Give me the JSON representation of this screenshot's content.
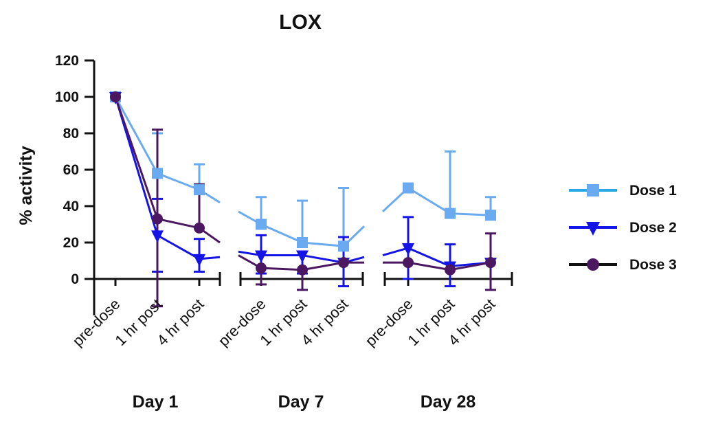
{
  "chart_data": {
    "type": "line",
    "title": "LOX",
    "ylabel": "% activity",
    "xlabel": "",
    "ylim": [
      -20,
      120
    ],
    "yticks": [
      "120",
      "100",
      "80",
      "60",
      "40",
      "20",
      "0"
    ],
    "groups": [
      {
        "label": "Day 1",
        "categories": [
          "pre-dose",
          "1 hr post",
          "4 hr post"
        ]
      },
      {
        "label": "Day 7",
        "categories": [
          "pre-dose",
          "1 hr post",
          "4 hr post"
        ]
      },
      {
        "label": "Day 28",
        "categories": [
          "pre-dose",
          "1 hr post",
          "4 hr post"
        ]
      }
    ],
    "series": [
      {
        "name": "Dose 1",
        "color": "#6aaaf0",
        "marker": "square",
        "values": [
          100,
          58,
          49,
          30,
          20,
          18,
          50,
          36,
          35
        ],
        "err_low": [
          null,
          null,
          null,
          null,
          null,
          null,
          null,
          null,
          null
        ],
        "err_high": [
          null,
          80,
          63,
          45,
          43,
          50,
          null,
          70,
          45
        ],
        "segment_ends": [
          42,
          37,
          29,
          37
        ]
      },
      {
        "name": "Dose 2",
        "color": "#1414e6",
        "marker": "triangle-down",
        "values": [
          100,
          24,
          11,
          13,
          13,
          9,
          17,
          7,
          9
        ],
        "err_low": [
          null,
          4,
          4,
          3,
          3,
          -4,
          0,
          -4,
          null
        ],
        "err_high": [
          null,
          44,
          22,
          24,
          null,
          23,
          34,
          19,
          null
        ],
        "segment_ends": [
          12,
          15,
          12,
          13
        ]
      },
      {
        "name": "Dose 3",
        "color": "#4a1760",
        "marker": "circle",
        "values": [
          100,
          33,
          28,
          6,
          5,
          9,
          9,
          5,
          9
        ],
        "err_low": [
          null,
          -15,
          null,
          -3,
          -6,
          null,
          null,
          null,
          -6
        ],
        "err_high": [
          null,
          82,
          52,
          null,
          null,
          null,
          null,
          null,
          25
        ],
        "segment_ends": [
          20,
          13,
          9,
          9
        ]
      }
    ],
    "legend_position": "right"
  }
}
